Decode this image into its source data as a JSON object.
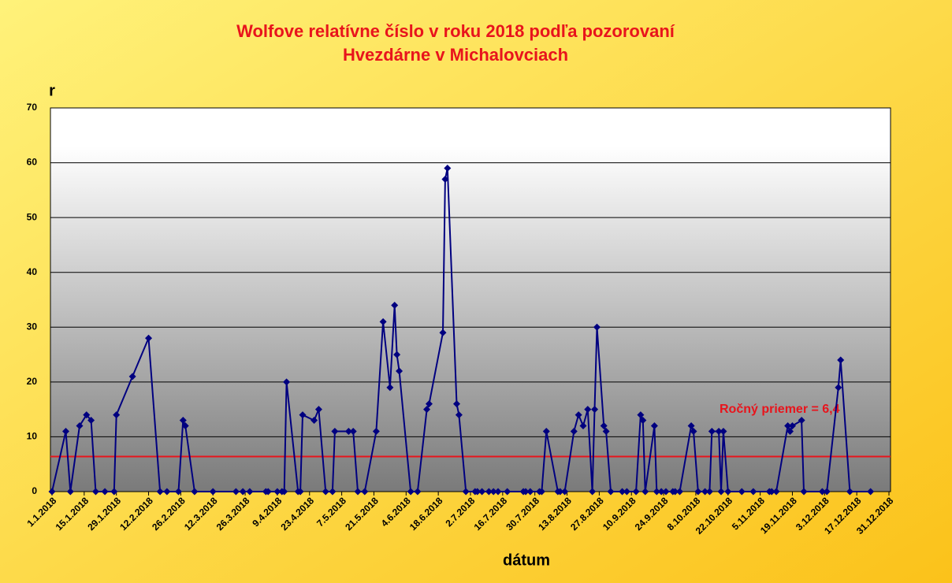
{
  "chart_data": {
    "type": "line",
    "title": "Wolfove relatívne číslo  v roku 2018 podľa pozorovaní",
    "subtitle": "Hvezdárne v Michalovciach",
    "y_label": "r",
    "x_label": "dátum",
    "x": [
      "1.1.2018",
      "7.1.2018",
      "9.1.2018",
      "13.1.2018",
      "16.1.2018",
      "18.1.2018",
      "20.1.2018",
      "24.1.2018",
      "28.1.2018",
      "29.1.2018",
      "5.2.2018",
      "12.2.2018",
      "17.2.2018",
      "20.2.2018",
      "25.2.2018",
      "27.2.2018",
      "28.2.2018",
      "4.3.2018",
      "12.3.2018",
      "22.3.2018",
      "25.3.2018",
      "28.3.2018",
      "4.4.2018",
      "5.4.2018",
      "9.4.2018",
      "11.4.2018",
      "12.4.2018",
      "13.4.2018",
      "18.4.2018",
      "19.4.2018",
      "20.4.2018",
      "25.4.2018",
      "27.4.2018",
      "30.4.2018",
      "3.5.2018",
      "4.5.2018",
      "10.5.2018",
      "12.5.2018",
      "14.5.2018",
      "17.5.2018",
      "22.5.2018",
      "25.5.2018",
      "28.5.2018",
      "30.5.2018",
      "31.5.2018",
      "1.6.2018",
      "6.6.2018",
      "9.6.2018",
      "13.6.2018",
      "14.6.2018",
      "20.6.2018",
      "21.6.2018",
      "22.6.2018",
      "26.6.2018",
      "27.6.2018",
      "30.6.2018",
      "4.7.2018",
      "5.7.2018",
      "7.7.2018",
      "10.7.2018",
      "12.7.2018",
      "14.7.2018",
      "18.7.2018",
      "25.7.2018",
      "26.7.2018",
      "28.7.2018",
      "1.8.2018",
      "2.8.2018",
      "4.8.2018",
      "9.8.2018",
      "10.8.2018",
      "12.8.2018",
      "16.8.2018",
      "18.8.2018",
      "20.8.2018",
      "22.8.2018",
      "24.8.2018",
      "25.8.2018",
      "26.8.2018",
      "29.8.2018",
      "30.8.2018",
      "1.9.2018",
      "6.9.2018",
      "8.9.2018",
      "12.9.2018",
      "14.9.2018",
      "15.9.2018",
      "16.9.2018",
      "20.9.2018",
      "21.9.2018",
      "23.9.2018",
      "25.9.2018",
      "28.9.2018",
      "29.9.2018",
      "1.10.2018",
      "6.10.2018",
      "7.10.2018",
      "9.10.2018",
      "12.10.2018",
      "14.10.2018",
      "15.10.2018",
      "18.10.2018",
      "19.10.2018",
      "20.10.2018",
      "22.10.2018",
      "28.10.2018",
      "2.11.2018",
      "9.11.2018",
      "10.11.2018",
      "12.11.2018",
      "17.11.2018",
      "18.11.2018",
      "19.11.2018",
      "23.11.2018",
      "24.11.2018",
      "2.12.2018",
      "4.12.2018",
      "9.12.2018",
      "10.12.2018",
      "14.12.2018",
      "23.12.2018"
    ],
    "series": [
      {
        "name": "r",
        "color": "#000080",
        "values": [
          0,
          11,
          0,
          12,
          14,
          13,
          0,
          0,
          0,
          14,
          21,
          28,
          0,
          0,
          0,
          13,
          12,
          0,
          0,
          0,
          0,
          0,
          0,
          0,
          0,
          0,
          0,
          20,
          0,
          0,
          14,
          13,
          15,
          0,
          0,
          11,
          11,
          11,
          0,
          0,
          11,
          31,
          19,
          34,
          25,
          22,
          0,
          0,
          15,
          16,
          29,
          57,
          59,
          16,
          14,
          0,
          0,
          0,
          0,
          0,
          0,
          0,
          0,
          0,
          0,
          0,
          0,
          0,
          11,
          0,
          0,
          0,
          11,
          14,
          12,
          15,
          0,
          15,
          30,
          12,
          11,
          0,
          0,
          0,
          0,
          14,
          13,
          0,
          12,
          0,
          0,
          0,
          0,
          0,
          0,
          12,
          11,
          0,
          0,
          0,
          11,
          11,
          0,
          11,
          0,
          0,
          0,
          0,
          0,
          0,
          12,
          11,
          12,
          13,
          0,
          0,
          0,
          19,
          24,
          0,
          0
        ]
      }
    ],
    "xlim": [
      "1.1.2018",
      "31.12.2018"
    ],
    "xticks": [
      "1.1.2018",
      "15.1.2018",
      "29.1.2018",
      "12.2.2018",
      "26.2.2018",
      "12.3.2018",
      "26.3.2018",
      "9.4.2018",
      "23.4.2018",
      "7.5.2018",
      "21.5.2018",
      "4.6.2018",
      "18.6.2018",
      "2.7.2018",
      "16.7.2018",
      "30.7.2018",
      "13.8.2018",
      "27.8.2018",
      "10.9.2018",
      "24.9.2018",
      "8.10.2018",
      "22.10.2018",
      "5.11.2018",
      "19.11.2018",
      "3.12.2018",
      "17.12.2018",
      "31.12.2018"
    ],
    "ylim": [
      0,
      70
    ],
    "yticks": [
      0,
      10,
      20,
      30,
      40,
      50,
      60,
      70
    ],
    "grid": true,
    "average": {
      "value": 6.4,
      "label": "Ročný priemer = 6,4",
      "color": "#e8141c"
    }
  }
}
